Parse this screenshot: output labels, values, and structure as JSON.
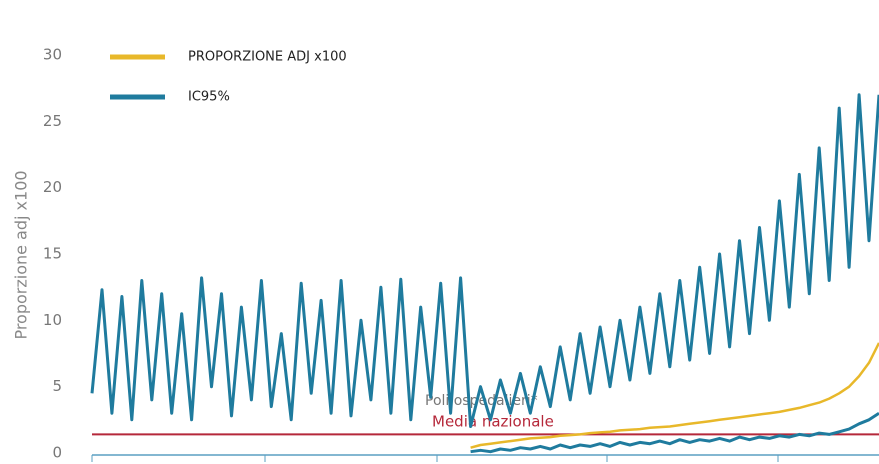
{
  "chart_data": {
    "type": "line",
    "ylabel": "Proporzione adj x100",
    "categories": [
      null,
      null,
      null,
      null,
      null,
      null,
      null,
      null,
      null,
      null,
      null,
      null,
      null,
      null,
      null,
      null,
      null,
      null,
      null,
      null,
      null,
      null,
      null,
      null,
      null,
      null,
      null,
      null,
      null,
      null,
      null,
      null,
      null,
      null,
      null,
      null,
      null,
      null,
      null,
      null,
      null,
      null,
      null,
      null,
      null,
      null,
      null,
      null,
      null,
      null,
      null,
      null,
      null,
      null,
      null,
      null,
      null,
      null,
      null,
      null,
      null,
      null,
      null,
      null,
      null,
      null,
      null,
      null,
      null,
      null,
      null,
      null,
      null,
      null,
      null,
      null,
      null,
      null,
      null,
      null
    ],
    "series": [
      {
        "name": "PROPORZIONE ADJ x100",
        "color": "#e8b82a",
        "values": [
          null,
          null,
          null,
          null,
          null,
          null,
          null,
          null,
          null,
          null,
          null,
          null,
          null,
          null,
          null,
          null,
          null,
          null,
          null,
          null,
          null,
          null,
          null,
          null,
          null,
          null,
          null,
          null,
          null,
          null,
          null,
          null,
          null,
          null,
          null,
          null,
          null,
          null,
          0.4,
          0.6,
          0.7,
          0.8,
          0.9,
          1.0,
          1.1,
          1.15,
          1.2,
          1.3,
          1.35,
          1.4,
          1.5,
          1.55,
          1.6,
          1.7,
          1.75,
          1.8,
          1.9,
          1.95,
          2.0,
          2.1,
          2.2,
          2.3,
          2.4,
          2.5,
          2.6,
          2.7,
          2.8,
          2.9,
          3.0,
          3.1,
          3.25,
          3.4,
          3.6,
          3.8,
          4.1,
          4.5,
          5.0,
          5.8,
          6.8,
          8.3
        ]
      },
      {
        "name": "IC95%",
        "color": "#1f7b9e",
        "values": [
          4.5,
          12.3,
          3,
          11.8,
          2.5,
          13,
          4,
          12,
          3,
          10.5,
          2.5,
          13.2,
          5,
          12,
          2.8,
          11,
          4,
          13,
          3.5,
          9,
          2.5,
          12.8,
          4.5,
          11.5,
          3,
          13,
          2.8,
          10,
          4,
          12.5,
          3,
          13.1,
          2.5,
          11,
          4.2,
          12.8,
          3,
          13.2,
          2,
          5,
          2.5,
          5.5,
          3,
          6,
          3,
          6.5,
          3.5,
          8,
          4,
          9,
          4.5,
          9.5,
          5,
          10,
          5.5,
          11,
          6,
          12,
          6.5,
          13,
          7,
          14,
          7.5,
          15,
          8,
          16,
          9,
          17,
          10,
          19,
          11,
          21,
          12,
          23,
          13,
          26,
          14,
          27,
          16,
          27
        ],
        "lower": [
          null,
          null,
          null,
          null,
          null,
          null,
          null,
          null,
          null,
          null,
          null,
          null,
          null,
          null,
          null,
          null,
          null,
          null,
          null,
          null,
          null,
          null,
          null,
          null,
          null,
          null,
          null,
          null,
          null,
          null,
          null,
          null,
          null,
          null,
          null,
          null,
          null,
          null,
          0.1,
          0.2,
          0.1,
          0.3,
          0.2,
          0.4,
          0.3,
          0.5,
          0.3,
          0.6,
          0.4,
          0.6,
          0.5,
          0.7,
          0.5,
          0.8,
          0.6,
          0.8,
          0.7,
          0.9,
          0.7,
          1.0,
          0.8,
          1.0,
          0.9,
          1.1,
          0.9,
          1.2,
          1.0,
          1.2,
          1.1,
          1.3,
          1.2,
          1.4,
          1.3,
          1.5,
          1.4,
          1.6,
          1.8,
          2.2,
          2.5,
          3.0
        ]
      }
    ],
    "reference_line": {
      "value": 1.4,
      "label": "Media nazionale",
      "color": "#b5283a"
    },
    "annotation": "Poli ospedalieri*",
    "ylim": [
      0,
      30
    ],
    "yticks": [
      0,
      5,
      10,
      15,
      20,
      25,
      30
    ],
    "grid": false
  }
}
